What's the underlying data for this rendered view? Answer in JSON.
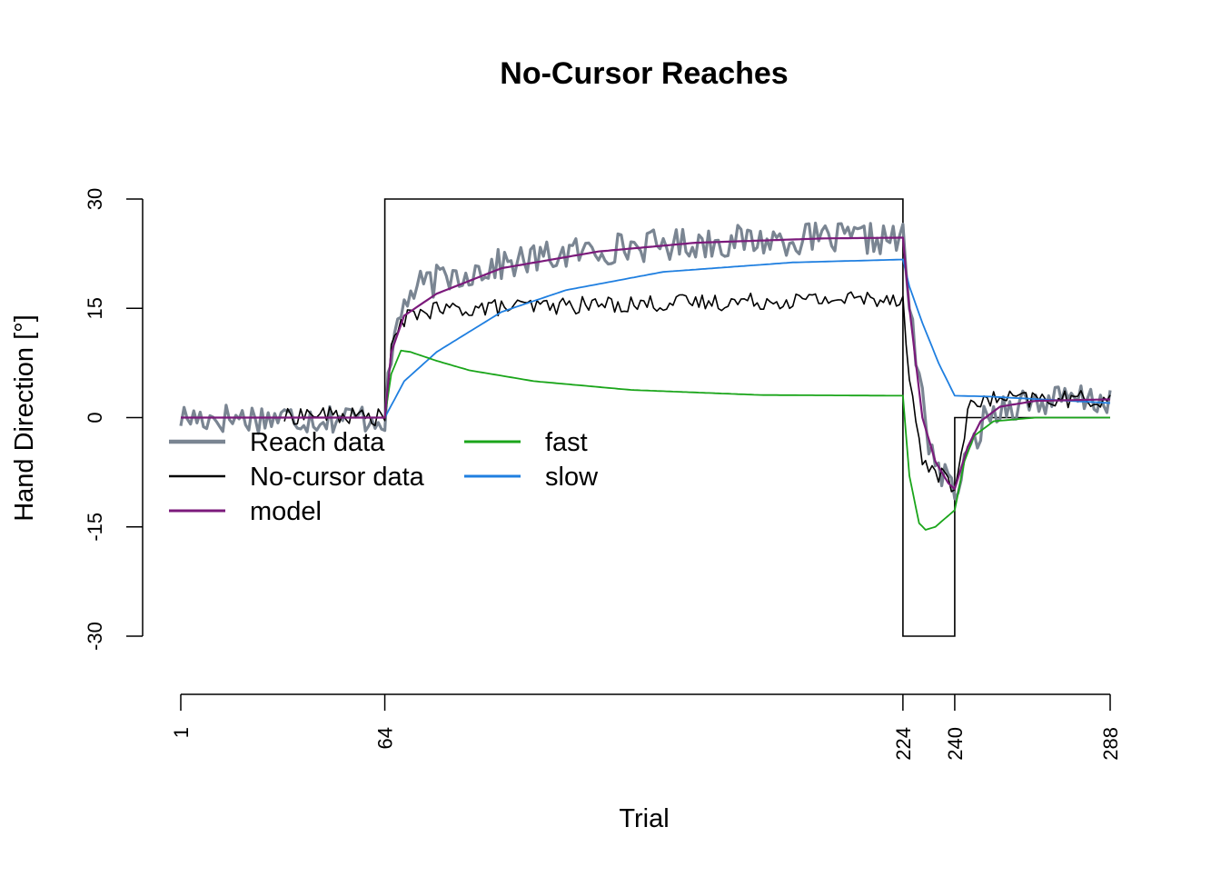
{
  "chart_data": {
    "type": "line",
    "title": "No-Cursor Reaches",
    "xlabel": "Trial",
    "ylabel": "Hand Direction [°]",
    "xlim": [
      1,
      288
    ],
    "ylim": [
      -30,
      30
    ],
    "x_ticks": [
      1,
      64,
      224,
      240,
      288
    ],
    "x_tick_labels": [
      "1",
      "64",
      "224",
      "240",
      "288"
    ],
    "y_ticks": [
      -30,
      -15,
      0,
      15,
      30
    ],
    "y_tick_labels": [
      "-30",
      "-15",
      "0",
      "15",
      "30"
    ],
    "grid": false,
    "legend_position": "left, below zero line",
    "perturbation": {
      "name": "schedule",
      "color": "#000000",
      "points": [
        [
          64,
          0
        ],
        [
          64,
          30
        ],
        [
          224,
          30
        ],
        [
          224,
          -30
        ],
        [
          240,
          -30
        ],
        [
          240,
          0
        ],
        [
          288,
          0
        ]
      ]
    },
    "series": [
      {
        "name": "Reach data",
        "color": "#7a8592",
        "anchors": [
          [
            1,
            0
          ],
          [
            64,
            0
          ],
          [
            65,
            4
          ],
          [
            67,
            11
          ],
          [
            70,
            16
          ],
          [
            75,
            18
          ],
          [
            85,
            19.5
          ],
          [
            100,
            21
          ],
          [
            120,
            22.5
          ],
          [
            140,
            23.5
          ],
          [
            160,
            24
          ],
          [
            190,
            24.5
          ],
          [
            224,
            24.5
          ],
          [
            225,
            20
          ],
          [
            228,
            8
          ],
          [
            232,
            -3
          ],
          [
            236,
            -8
          ],
          [
            240,
            -10
          ],
          [
            244,
            -6
          ],
          [
            248,
            -1
          ],
          [
            254,
            1.5
          ],
          [
            262,
            2.2
          ],
          [
            288,
            2.5
          ]
        ],
        "noise_amplitude": 2.2
      },
      {
        "name": "No-cursor data",
        "color": "#000000",
        "anchors": [
          [
            1,
            0
          ],
          [
            33,
            0
          ],
          [
            40,
            0.5
          ],
          [
            64,
            0
          ],
          [
            66,
            9
          ],
          [
            69,
            13
          ],
          [
            74,
            14.5
          ],
          [
            90,
            15
          ],
          [
            130,
            15.5
          ],
          [
            180,
            16
          ],
          [
            224,
            16.5
          ],
          [
            226,
            5
          ],
          [
            230,
            -6
          ],
          [
            236,
            -8
          ],
          [
            240,
            -10
          ],
          [
            244,
            1
          ],
          [
            250,
            2.5
          ],
          [
            288,
            2.5
          ]
        ],
        "noise_amplitude": 1.2
      },
      {
        "name": "model",
        "color": "#7b1a7b",
        "anchors": [
          [
            1,
            0
          ],
          [
            64,
            0
          ],
          [
            66,
            9
          ],
          [
            70,
            14
          ],
          [
            80,
            17
          ],
          [
            100,
            20.5
          ],
          [
            130,
            22.8
          ],
          [
            160,
            24
          ],
          [
            200,
            24.6
          ],
          [
            224,
            24.7
          ],
          [
            226,
            15
          ],
          [
            230,
            0
          ],
          [
            234,
            -6
          ],
          [
            238,
            -9
          ],
          [
            240,
            -9.8
          ],
          [
            244,
            -4
          ],
          [
            248,
            -0.5
          ],
          [
            254,
            1.5
          ],
          [
            265,
            2.3
          ],
          [
            288,
            2.5
          ]
        ]
      },
      {
        "name": "fast",
        "color": "#1aa51a",
        "anchors": [
          [
            1,
            0
          ],
          [
            64,
            0
          ],
          [
            66,
            6
          ],
          [
            69,
            9.2
          ],
          [
            72,
            9
          ],
          [
            80,
            7.8
          ],
          [
            90,
            6.5
          ],
          [
            110,
            5
          ],
          [
            140,
            3.8
          ],
          [
            180,
            3.1
          ],
          [
            224,
            3
          ],
          [
            226,
            -8
          ],
          [
            229,
            -14.5
          ],
          [
            231,
            -15.4
          ],
          [
            234,
            -15
          ],
          [
            240,
            -12.7
          ],
          [
            243,
            -6
          ],
          [
            246,
            -2.5
          ],
          [
            252,
            -0.5
          ],
          [
            265,
            0
          ],
          [
            288,
            0
          ]
        ]
      },
      {
        "name": "slow",
        "color": "#1f7fe0",
        "anchors": [
          [
            1,
            0
          ],
          [
            64,
            0
          ],
          [
            70,
            5
          ],
          [
            80,
            9
          ],
          [
            100,
            14.5
          ],
          [
            120,
            17.5
          ],
          [
            150,
            20
          ],
          [
            190,
            21.3
          ],
          [
            224,
            21.7
          ],
          [
            226,
            18
          ],
          [
            230,
            13
          ],
          [
            235,
            7.5
          ],
          [
            240,
            3
          ],
          [
            250,
            2.9
          ],
          [
            288,
            2
          ]
        ]
      }
    ]
  }
}
